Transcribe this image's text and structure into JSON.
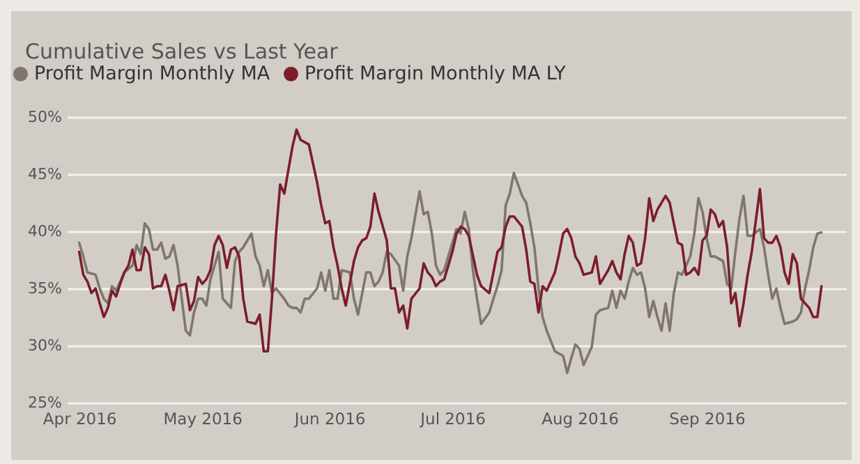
{
  "chart_data": {
    "type": "line",
    "title": "Cumulative Sales vs Last Year",
    "legend": "top left",
    "grid": "y",
    "line_style": "solid",
    "ylim": [
      25,
      50
    ],
    "yticks": [
      {
        "value": 25,
        "label": "25%"
      },
      {
        "value": 30,
        "label": "30%"
      },
      {
        "value": 35,
        "label": "35%"
      },
      {
        "value": 40,
        "label": "40%"
      },
      {
        "value": 45,
        "label": "45%"
      },
      {
        "value": 50,
        "label": "50%"
      }
    ],
    "xlim": [
      "2016-03-29",
      "2016-10-05"
    ],
    "xticks": [
      {
        "value": "2016-04-01",
        "label": "Apr 2016"
      },
      {
        "value": "2016-05-01",
        "label": "May 2016"
      },
      {
        "value": "2016-06-01",
        "label": "Jun 2016"
      },
      {
        "value": "2016-07-01",
        "label": "Jul 2016"
      },
      {
        "value": "2016-08-01",
        "label": "Aug 2016"
      },
      {
        "value": "2016-09-01",
        "label": "Sep 2016"
      }
    ],
    "series": [
      {
        "name": "Profit Margin Monthly MA",
        "color": "#7f776d",
        "x": [
          "2016-04-01",
          "2016-04-02",
          "2016-04-03",
          "2016-04-05",
          "2016-04-06",
          "2016-04-07",
          "2016-04-08",
          "2016-04-09",
          "2016-04-10",
          "2016-04-11",
          "2016-04-12",
          "2016-04-14",
          "2016-04-15",
          "2016-04-16",
          "2016-04-17",
          "2016-04-18",
          "2016-04-19",
          "2016-04-20",
          "2016-04-21",
          "2016-04-22",
          "2016-04-23",
          "2016-04-24",
          "2016-04-25",
          "2016-04-26",
          "2016-04-27",
          "2016-04-28",
          "2016-04-29",
          "2016-04-30",
          "2016-05-01",
          "2016-05-02",
          "2016-05-03",
          "2016-05-05",
          "2016-05-06",
          "2016-05-07",
          "2016-05-08",
          "2016-05-09",
          "2016-05-10",
          "2016-05-11",
          "2016-05-13",
          "2016-05-14",
          "2016-05-15",
          "2016-05-16",
          "2016-05-17",
          "2016-05-18",
          "2016-05-19",
          "2016-05-21",
          "2016-05-22",
          "2016-05-23",
          "2016-05-24",
          "2016-05-25",
          "2016-05-26",
          "2016-05-27",
          "2016-05-29",
          "2016-05-30",
          "2016-05-31",
          "2016-06-01",
          "2016-06-02",
          "2016-06-03",
          "2016-06-04",
          "2016-06-06",
          "2016-06-07",
          "2016-06-08",
          "2016-06-10",
          "2016-06-11",
          "2016-06-12",
          "2016-06-13",
          "2016-06-14",
          "2016-06-15",
          "2016-06-16",
          "2016-06-18",
          "2016-06-19",
          "2016-06-20",
          "2016-06-21",
          "2016-06-23",
          "2016-06-24",
          "2016-06-25",
          "2016-06-26",
          "2016-06-27",
          "2016-06-28",
          "2016-06-29",
          "2016-07-01",
          "2016-07-02",
          "2016-07-03",
          "2016-07-04",
          "2016-07-05",
          "2016-07-06",
          "2016-07-07",
          "2016-07-08",
          "2016-07-10",
          "2016-07-11",
          "2016-07-12",
          "2016-07-13",
          "2016-07-14",
          "2016-07-15",
          "2016-07-16",
          "2016-07-18",
          "2016-07-19",
          "2016-07-20",
          "2016-07-21",
          "2016-07-22",
          "2016-07-23",
          "2016-07-24",
          "2016-07-26",
          "2016-07-27",
          "2016-07-28",
          "2016-07-29",
          "2016-07-30",
          "2016-07-31",
          "2016-08-01",
          "2016-08-02",
          "2016-08-04",
          "2016-08-05",
          "2016-08-06",
          "2016-08-08",
          "2016-08-09",
          "2016-08-10",
          "2016-08-11",
          "2016-08-12",
          "2016-08-13",
          "2016-08-14",
          "2016-08-15",
          "2016-08-16",
          "2016-08-17",
          "2016-08-18",
          "2016-08-19",
          "2016-08-20",
          "2016-08-21",
          "2016-08-22",
          "2016-08-23",
          "2016-08-24",
          "2016-08-25",
          "2016-08-26",
          "2016-08-28",
          "2016-08-29",
          "2016-08-30",
          "2016-08-31",
          "2016-09-01",
          "2016-09-02",
          "2016-09-03",
          "2016-09-05",
          "2016-09-06",
          "2016-09-07",
          "2016-09-08",
          "2016-09-09",
          "2016-09-10",
          "2016-09-11",
          "2016-09-12",
          "2016-09-14",
          "2016-09-15",
          "2016-09-16",
          "2016-09-17",
          "2016-09-18",
          "2016-09-19",
          "2016-09-20",
          "2016-09-22",
          "2016-09-23",
          "2016-09-24",
          "2016-09-25",
          "2016-09-26",
          "2016-09-27",
          "2016-09-28",
          "2016-09-29"
        ],
        "values": [
          39.0,
          37.8,
          36.4,
          36.2,
          35.0,
          34.1,
          33.7,
          35.2,
          34.8,
          35.6,
          36.4,
          37.0,
          38.8,
          38.0,
          40.7,
          40.2,
          38.4,
          38.4,
          39.0,
          37.6,
          37.8,
          38.8,
          37.0,
          34.1,
          31.3,
          30.9,
          32.9,
          34.1,
          34.1,
          33.5,
          35.8,
          38.2,
          34.1,
          33.7,
          33.3,
          37.4,
          38.2,
          38.6,
          39.8,
          37.8,
          37.0,
          35.2,
          36.6,
          34.6,
          35.0,
          34.1,
          33.5,
          33.3,
          33.3,
          32.9,
          34.1,
          34.1,
          35.0,
          36.4,
          34.8,
          36.6,
          34.1,
          34.1,
          36.6,
          36.4,
          34.1,
          32.7,
          36.4,
          36.4,
          35.2,
          35.6,
          36.4,
          38.2,
          38.0,
          37.0,
          34.8,
          37.8,
          39.4,
          43.5,
          41.5,
          41.7,
          39.8,
          37.0,
          36.2,
          36.6,
          39.0,
          40.2,
          39.8,
          41.7,
          40.2,
          36.6,
          34.1,
          31.9,
          32.9,
          34.1,
          35.2,
          36.6,
          42.3,
          43.3,
          45.1,
          43.1,
          42.5,
          40.7,
          38.6,
          35.0,
          32.5,
          31.3,
          29.5,
          29.3,
          29.1,
          27.6,
          28.9,
          30.1,
          29.7,
          28.3,
          29.9,
          32.7,
          33.1,
          33.3,
          34.8,
          33.3,
          34.8,
          34.1,
          35.6,
          36.8,
          36.2,
          36.4,
          35.0,
          32.5,
          33.9,
          32.5,
          31.3,
          33.7,
          31.3,
          34.6,
          36.4,
          36.2,
          37.8,
          39.8,
          42.9,
          41.7,
          39.4,
          37.8,
          37.8,
          37.4,
          35.4,
          35.0,
          38.2,
          41.1,
          43.1,
          39.6,
          39.6,
          40.2,
          38.6,
          36.2,
          34.1,
          35.0,
          33.3,
          31.9,
          32.1,
          32.3,
          32.9,
          35.0,
          36.6,
          38.6,
          39.8,
          39.9
        ]
      },
      {
        "name": "Profit Margin Monthly MA LY",
        "color": "#7b1e2a",
        "x": [
          "2016-04-01",
          "2016-04-02",
          "2016-04-03",
          "2016-04-04",
          "2016-04-05",
          "2016-04-06",
          "2016-04-07",
          "2016-04-08",
          "2016-04-09",
          "2016-04-10",
          "2016-04-11",
          "2016-04-12",
          "2016-04-13",
          "2016-04-14",
          "2016-04-15",
          "2016-04-16",
          "2016-04-17",
          "2016-04-18",
          "2016-04-19",
          "2016-04-20",
          "2016-04-21",
          "2016-04-22",
          "2016-04-23",
          "2016-04-24",
          "2016-04-25",
          "2016-04-27",
          "2016-04-28",
          "2016-04-29",
          "2016-04-30",
          "2016-05-01",
          "2016-05-02",
          "2016-05-03",
          "2016-05-04",
          "2016-05-05",
          "2016-05-06",
          "2016-05-07",
          "2016-05-08",
          "2016-05-09",
          "2016-05-10",
          "2016-05-11",
          "2016-05-12",
          "2016-05-14",
          "2016-05-15",
          "2016-05-16",
          "2016-05-17",
          "2016-05-18",
          "2016-05-19",
          "2016-05-20",
          "2016-05-21",
          "2016-05-23",
          "2016-05-24",
          "2016-05-25",
          "2016-05-26",
          "2016-05-27",
          "2016-05-29",
          "2016-05-30",
          "2016-05-31",
          "2016-06-01",
          "2016-06-02",
          "2016-06-03",
          "2016-06-04",
          "2016-06-05",
          "2016-06-07",
          "2016-06-08",
          "2016-06-09",
          "2016-06-10",
          "2016-06-11",
          "2016-06-12",
          "2016-06-13",
          "2016-06-15",
          "2016-06-16",
          "2016-06-17",
          "2016-06-18",
          "2016-06-19",
          "2016-06-20",
          "2016-06-21",
          "2016-06-23",
          "2016-06-24",
          "2016-06-25",
          "2016-06-26",
          "2016-06-27",
          "2016-06-28",
          "2016-06-29",
          "2016-07-01",
          "2016-07-02",
          "2016-07-03",
          "2016-07-04",
          "2016-07-05",
          "2016-07-06",
          "2016-07-07",
          "2016-07-08",
          "2016-07-10",
          "2016-07-11",
          "2016-07-12",
          "2016-07-13",
          "2016-07-14",
          "2016-07-15",
          "2016-07-16",
          "2016-07-18",
          "2016-07-19",
          "2016-07-20",
          "2016-07-21",
          "2016-07-22",
          "2016-07-23",
          "2016-07-24",
          "2016-07-26",
          "2016-07-27",
          "2016-07-28",
          "2016-07-29",
          "2016-07-30",
          "2016-07-31",
          "2016-08-01",
          "2016-08-02",
          "2016-08-04",
          "2016-08-05",
          "2016-08-06",
          "2016-08-07",
          "2016-08-08",
          "2016-08-09",
          "2016-08-10",
          "2016-08-11",
          "2016-08-12",
          "2016-08-13",
          "2016-08-14",
          "2016-08-15",
          "2016-08-16",
          "2016-08-17",
          "2016-08-18",
          "2016-08-19",
          "2016-08-20",
          "2016-08-22",
          "2016-08-23",
          "2016-08-24",
          "2016-08-25",
          "2016-08-26",
          "2016-08-27",
          "2016-08-28",
          "2016-08-29",
          "2016-08-30",
          "2016-08-31",
          "2016-09-01",
          "2016-09-02",
          "2016-09-03",
          "2016-09-04",
          "2016-09-05",
          "2016-09-06",
          "2016-09-07",
          "2016-09-08",
          "2016-09-09",
          "2016-09-10",
          "2016-09-11",
          "2016-09-12",
          "2016-09-14",
          "2016-09-15",
          "2016-09-16",
          "2016-09-17",
          "2016-09-18",
          "2016-09-19",
          "2016-09-20",
          "2016-09-21",
          "2016-09-22",
          "2016-09-23",
          "2016-09-24",
          "2016-09-26",
          "2016-09-27",
          "2016-09-28",
          "2016-09-29"
        ],
        "values": [
          38.2,
          36.2,
          35.6,
          34.6,
          35.0,
          33.7,
          32.5,
          33.3,
          34.8,
          34.3,
          35.4,
          36.4,
          37.0,
          38.4,
          36.6,
          36.6,
          38.6,
          38.0,
          35.0,
          35.2,
          35.2,
          36.2,
          34.8,
          33.1,
          35.2,
          35.4,
          33.1,
          33.9,
          36.0,
          35.4,
          35.8,
          36.6,
          38.8,
          39.6,
          38.8,
          36.8,
          38.4,
          38.6,
          37.8,
          34.1,
          32.1,
          31.9,
          32.7,
          29.5,
          29.5,
          34.1,
          39.8,
          44.1,
          43.3,
          47.4,
          48.9,
          48.0,
          47.8,
          47.6,
          44.3,
          42.3,
          40.7,
          40.9,
          38.6,
          37.0,
          35.0,
          33.5,
          37.4,
          38.6,
          39.2,
          39.4,
          40.4,
          43.3,
          41.7,
          39.2,
          35.0,
          35.0,
          32.9,
          33.5,
          31.5,
          34.1,
          35.0,
          37.2,
          36.4,
          36.0,
          35.2,
          35.6,
          35.8,
          38.2,
          39.8,
          40.4,
          40.2,
          39.6,
          37.9,
          36.2,
          35.2,
          34.6,
          36.4,
          38.2,
          38.6,
          40.4,
          41.3,
          41.3,
          40.4,
          38.4,
          35.6,
          35.4,
          32.9,
          35.2,
          34.8,
          36.4,
          38.0,
          39.8,
          40.2,
          39.4,
          37.8,
          37.2,
          36.2,
          36.4,
          37.8,
          35.4,
          36.0,
          36.6,
          37.4,
          36.4,
          35.8,
          38.0,
          39.6,
          39.0,
          37.0,
          37.2,
          39.4,
          42.9,
          40.9,
          41.9,
          43.1,
          42.5,
          40.7,
          39.0,
          38.8,
          36.2,
          36.4,
          36.8,
          36.2,
          39.2,
          39.6,
          41.9,
          41.5,
          40.4,
          40.9,
          38.6,
          33.7,
          34.6,
          31.7,
          33.7,
          36.2,
          38.2,
          43.7,
          39.4,
          39.0,
          39.0,
          39.6,
          38.6,
          36.4,
          35.4,
          38.0,
          37.2,
          34.1,
          33.3,
          32.5,
          32.5,
          35.2
        ]
      }
    ]
  }
}
